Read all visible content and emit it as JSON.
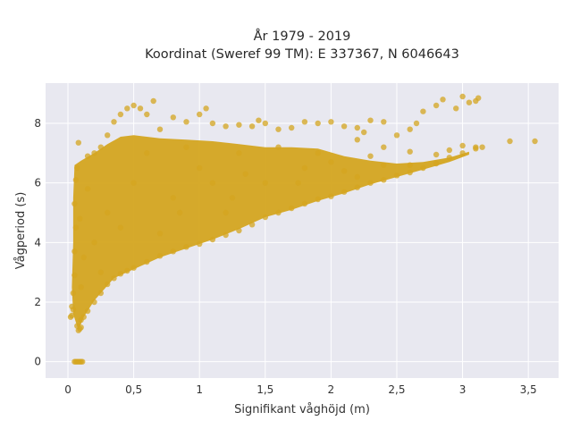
{
  "chart_data": {
    "type": "scatter",
    "title": "År 1979 - 2019",
    "subtitle": "Koordinat (Sweref 99 TM): E 337367, N 6046643",
    "xlabel": "Signifikant våghöjd (m)",
    "ylabel": "Vågperiod (s)",
    "xlim": [
      -0.17,
      3.73
    ],
    "ylim": [
      -0.55,
      9.35
    ],
    "x_ticks": [
      0,
      0.5,
      1,
      1.5,
      2,
      2.5,
      3,
      3.5
    ],
    "x_tick_labels": [
      "0",
      "0,5",
      "1",
      "1,5",
      "2",
      "2,5",
      "3",
      "3,5"
    ],
    "y_ticks": [
      0,
      2,
      4,
      6,
      8
    ],
    "y_tick_labels": [
      "0",
      "2",
      "4",
      "6",
      "8"
    ],
    "grid": true,
    "legend": "none",
    "marker_color": "#D4A520",
    "plot_background": "#E8E8F0",
    "series": [
      {
        "points": [
          [
            0.02,
            1.5
          ],
          [
            0.03,
            1.55
          ],
          [
            0.03,
            1.85
          ],
          [
            0.04,
            1.75
          ],
          [
            0.04,
            2.3
          ],
          [
            0.05,
            2.9
          ],
          [
            0.05,
            3.7
          ],
          [
            0.06,
            4.5
          ],
          [
            0.05,
            5.3
          ],
          [
            0.06,
            6.1
          ],
          [
            0.07,
            6.5
          ],
          [
            0.07,
            1.2
          ],
          [
            0.08,
            1.05
          ],
          [
            0.09,
            1.1
          ],
          [
            0.1,
            1.15
          ],
          [
            0.1,
            1.4
          ],
          [
            0.12,
            1.5
          ],
          [
            0.15,
            1.7
          ],
          [
            0.2,
            2.0
          ],
          [
            0.25,
            2.3
          ],
          [
            0.3,
            2.6
          ],
          [
            0.35,
            2.8
          ],
          [
            0.4,
            2.95
          ],
          [
            0.45,
            3.05
          ],
          [
            0.5,
            3.15
          ],
          [
            0.6,
            3.35
          ],
          [
            0.7,
            3.55
          ],
          [
            0.8,
            3.7
          ],
          [
            0.9,
            3.85
          ],
          [
            1.0,
            3.95
          ],
          [
            1.1,
            4.1
          ],
          [
            1.2,
            4.25
          ],
          [
            1.3,
            4.4
          ],
          [
            1.4,
            4.6
          ],
          [
            1.5,
            4.85
          ],
          [
            1.6,
            5.0
          ],
          [
            1.7,
            5.15
          ],
          [
            1.8,
            5.3
          ],
          [
            1.9,
            5.45
          ],
          [
            2.0,
            5.55
          ],
          [
            2.1,
            5.7
          ],
          [
            2.2,
            5.85
          ],
          [
            2.3,
            6.0
          ],
          [
            2.4,
            6.1
          ],
          [
            2.5,
            6.25
          ],
          [
            2.6,
            6.35
          ],
          [
            2.7,
            6.5
          ],
          [
            2.8,
            6.65
          ],
          [
            2.9,
            6.85
          ],
          [
            3.0,
            7.0
          ],
          [
            3.1,
            7.15
          ],
          [
            0.05,
            0.0
          ],
          [
            0.06,
            0.0
          ],
          [
            0.07,
            0.0
          ],
          [
            0.08,
            0.0
          ],
          [
            0.09,
            0.0
          ],
          [
            0.1,
            0.0
          ],
          [
            0.11,
            0.0
          ],
          [
            0.08,
            7.35
          ],
          [
            0.15,
            6.9
          ],
          [
            0.2,
            7.0
          ],
          [
            0.25,
            7.2
          ],
          [
            0.3,
            7.6
          ],
          [
            0.35,
            8.05
          ],
          [
            0.4,
            8.3
          ],
          [
            0.45,
            8.5
          ],
          [
            0.5,
            8.6
          ],
          [
            0.55,
            8.5
          ],
          [
            0.6,
            8.3
          ],
          [
            0.65,
            8.75
          ],
          [
            0.7,
            7.8
          ],
          [
            0.8,
            8.2
          ],
          [
            0.9,
            8.05
          ],
          [
            1.0,
            8.3
          ],
          [
            1.05,
            8.5
          ],
          [
            1.1,
            8.0
          ],
          [
            1.2,
            7.9
          ],
          [
            1.3,
            7.95
          ],
          [
            1.4,
            7.9
          ],
          [
            1.45,
            8.1
          ],
          [
            1.5,
            8.0
          ],
          [
            1.6,
            7.8
          ],
          [
            1.7,
            7.85
          ],
          [
            1.8,
            8.05
          ],
          [
            1.9,
            8.0
          ],
          [
            2.0,
            8.05
          ],
          [
            2.1,
            7.9
          ],
          [
            2.2,
            7.85
          ],
          [
            2.25,
            7.7
          ],
          [
            2.3,
            8.1
          ],
          [
            2.4,
            8.05
          ],
          [
            2.5,
            7.6
          ],
          [
            2.6,
            7.8
          ],
          [
            2.65,
            8.0
          ],
          [
            2.7,
            8.4
          ],
          [
            2.8,
            8.6
          ],
          [
            2.85,
            8.8
          ],
          [
            2.95,
            8.5
          ],
          [
            3.0,
            8.9
          ],
          [
            3.05,
            8.7
          ],
          [
            3.1,
            8.75
          ],
          [
            3.12,
            8.85
          ],
          [
            2.2,
            7.45
          ],
          [
            2.4,
            7.2
          ],
          [
            2.6,
            7.05
          ],
          [
            2.8,
            6.95
          ],
          [
            2.9,
            7.1
          ],
          [
            3.0,
            7.25
          ],
          [
            3.1,
            7.2
          ],
          [
            3.15,
            7.2
          ],
          [
            3.36,
            7.4
          ],
          [
            3.55,
            7.4
          ],
          [
            0.3,
            5.0
          ],
          [
            0.5,
            6.0
          ],
          [
            0.8,
            5.5
          ],
          [
            1.0,
            6.5
          ],
          [
            1.2,
            5.0
          ],
          [
            1.5,
            6.0
          ],
          [
            1.8,
            6.5
          ],
          [
            2.0,
            6.7
          ],
          [
            2.2,
            6.2
          ],
          [
            2.4,
            6.6
          ],
          [
            2.6,
            6.6
          ],
          [
            0.2,
            4.0
          ],
          [
            0.25,
            3.0
          ],
          [
            0.4,
            4.5
          ],
          [
            0.6,
            7.0
          ],
          [
            0.9,
            7.2
          ],
          [
            1.1,
            6.0
          ],
          [
            1.3,
            7.0
          ],
          [
            1.6,
            7.2
          ],
          [
            1.9,
            7.0
          ],
          [
            2.1,
            6.4
          ],
          [
            0.15,
            5.8
          ],
          [
            0.12,
            3.5
          ],
          [
            0.1,
            2.5
          ],
          [
            0.09,
            4.8
          ],
          [
            0.7,
            4.3
          ],
          [
            0.85,
            5.0
          ],
          [
            1.25,
            5.5
          ],
          [
            1.35,
            6.3
          ],
          [
            1.75,
            6.0
          ],
          [
            2.3,
            6.9
          ]
        ]
      }
    ]
  }
}
